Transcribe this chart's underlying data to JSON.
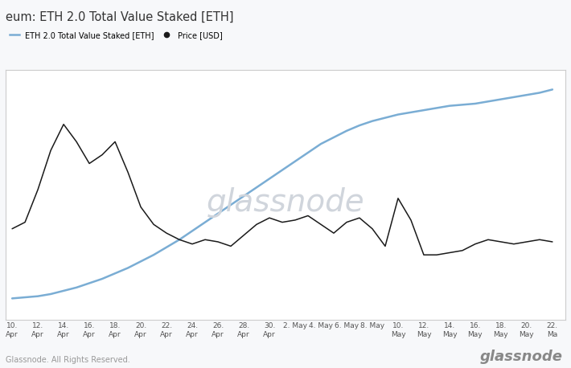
{
  "title": "eum: ETH 2.0 Total Value Staked [ETH]",
  "legend_staked": "ETH 2.0 Total Value Staked [ETH]",
  "legend_price": "Price [USD]",
  "watermark": "glassnode",
  "footer_left": "Glassnode. All Rights Reserved.",
  "footer_right": "glassnode",
  "bg_color": "#f7f8fa",
  "plot_bg_color": "#ffffff",
  "grid_color": "#e0e0e0",
  "staked_color": "#7aadd4",
  "price_color": "#1a1a1a",
  "title_color": "#333333",
  "watermark_color": "#d0d5dc",
  "x_labels": [
    "10.\nApr",
    "12.\nApr",
    "14.\nApr",
    "16.\nApr",
    "18.\nApr",
    "20.\nApr",
    "22.\nApr",
    "24.\nApr",
    "26.\nApr",
    "28.\nApr",
    "30.\nApr",
    "2. May",
    "4. May",
    "6. May",
    "8. May",
    "10.\nMay",
    "12.\nMay",
    "14.\nMay",
    "16.\nMay",
    "18.\nMay",
    "20.\nMay",
    "22.\nMa"
  ],
  "x_positions": [
    0,
    2,
    4,
    6,
    8,
    10,
    12,
    14,
    16,
    18,
    20,
    22,
    24,
    26,
    28,
    30,
    32,
    34,
    36,
    38,
    40,
    42
  ],
  "staked_x": [
    0,
    1,
    2,
    3,
    4,
    5,
    6,
    7,
    8,
    9,
    10,
    11,
    12,
    13,
    14,
    15,
    16,
    17,
    18,
    19,
    20,
    21,
    22,
    23,
    24,
    25,
    26,
    27,
    28,
    29,
    30,
    31,
    32,
    33,
    34,
    35,
    36,
    37,
    38,
    39,
    40,
    41,
    42
  ],
  "staked_y": [
    10,
    10.5,
    11,
    12,
    13.5,
    15,
    17,
    19,
    21.5,
    24,
    27,
    30,
    33.5,
    37,
    41,
    45,
    49,
    53,
    57,
    61,
    65,
    69,
    73,
    77,
    81,
    84,
    87,
    89.5,
    91.5,
    93,
    94.5,
    95.5,
    96.5,
    97.5,
    98.5,
    99,
    99.5,
    100.5,
    101.5,
    102.5,
    103.5,
    104.5,
    106
  ],
  "price_x": [
    0,
    1,
    2,
    3,
    4,
    5,
    6,
    7,
    8,
    9,
    10,
    11,
    12,
    13,
    14,
    15,
    16,
    17,
    18,
    19,
    20,
    21,
    22,
    23,
    24,
    25,
    26,
    27,
    28,
    29,
    30,
    31,
    32,
    33,
    34,
    35,
    36,
    37,
    38,
    39,
    40,
    41,
    42
  ],
  "price_y": [
    42,
    45,
    60,
    78,
    90,
    82,
    72,
    76,
    82,
    68,
    52,
    44,
    40,
    37,
    35,
    37,
    36,
    34,
    39,
    44,
    47,
    45,
    46,
    48,
    44,
    40,
    45,
    47,
    42,
    34,
    56,
    46,
    30,
    30,
    31,
    32,
    35,
    37,
    36,
    35,
    36,
    37,
    36
  ],
  "ylim": [
    0,
    115
  ],
  "xlim": [
    -0.5,
    43
  ]
}
